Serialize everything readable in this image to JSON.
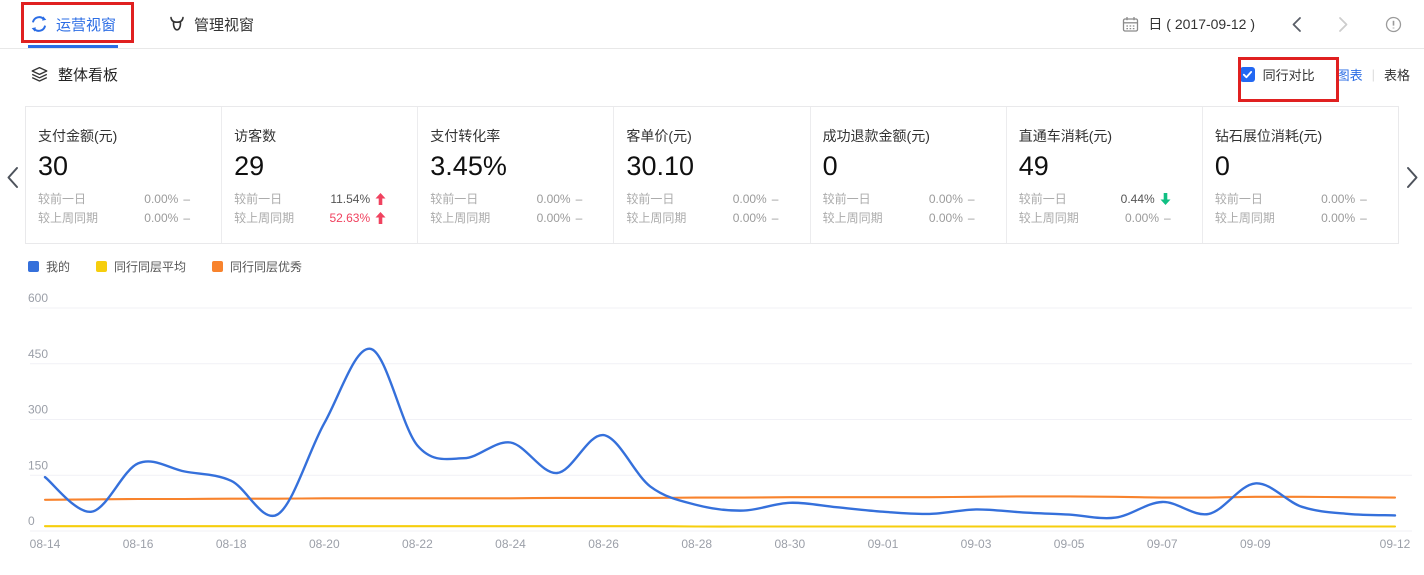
{
  "topbar": {
    "tabs": [
      {
        "label": "运营视窗",
        "active": true
      },
      {
        "label": "管理视窗",
        "active": false
      }
    ],
    "date_label": "日 ( 2017-09-12 )"
  },
  "section": {
    "title": "整体看板",
    "peer_compare_label": "同行对比",
    "peer_compare_checked": true,
    "view_chart": "图表",
    "view_separator": "|",
    "view_table": "表格"
  },
  "cards": [
    {
      "title": "支付金额(元)",
      "value": "30",
      "rows": [
        {
          "label": "较前一日",
          "value": "0.00%",
          "trend": "flat",
          "tone": "gray"
        },
        {
          "label": "较上周同期",
          "value": "0.00%",
          "trend": "flat",
          "tone": "gray"
        }
      ]
    },
    {
      "title": "访客数",
      "value": "29",
      "rows": [
        {
          "label": "较前一日",
          "value": "11.54%",
          "trend": "up",
          "tone": "dark"
        },
        {
          "label": "较上周同期",
          "value": "52.63%",
          "trend": "up",
          "tone": "red"
        }
      ]
    },
    {
      "title": "支付转化率",
      "value": "3.45%",
      "rows": [
        {
          "label": "较前一日",
          "value": "0.00%",
          "trend": "flat",
          "tone": "gray"
        },
        {
          "label": "较上周同期",
          "value": "0.00%",
          "trend": "flat",
          "tone": "gray"
        }
      ]
    },
    {
      "title": "客单价(元)",
      "value": "30.10",
      "rows": [
        {
          "label": "较前一日",
          "value": "0.00%",
          "trend": "flat",
          "tone": "gray"
        },
        {
          "label": "较上周同期",
          "value": "0.00%",
          "trend": "flat",
          "tone": "gray"
        }
      ]
    },
    {
      "title": "成功退款金额(元)",
      "value": "0",
      "rows": [
        {
          "label": "较前一日",
          "value": "0.00%",
          "trend": "flat",
          "tone": "gray"
        },
        {
          "label": "较上周同期",
          "value": "0.00%",
          "trend": "flat",
          "tone": "gray"
        }
      ]
    },
    {
      "title": "直通车消耗(元)",
      "value": "49",
      "rows": [
        {
          "label": "较前一日",
          "value": "0.44%",
          "trend": "down",
          "tone": "dark"
        },
        {
          "label": "较上周同期",
          "value": "0.00%",
          "trend": "flat",
          "tone": "gray"
        }
      ]
    },
    {
      "title": "钻石展位消耗(元)",
      "value": "0",
      "rows": [
        {
          "label": "较前一日",
          "value": "0.00%",
          "trend": "flat",
          "tone": "gray"
        },
        {
          "label": "较上周同期",
          "value": "0.00%",
          "trend": "flat",
          "tone": "gray"
        }
      ]
    }
  ],
  "chart_data": {
    "type": "line",
    "title": "",
    "xlabel": "",
    "ylabel": "",
    "x": [
      "08-14",
      "08-15",
      "08-16",
      "08-17",
      "08-18",
      "08-19",
      "08-20",
      "08-21",
      "08-22",
      "08-23",
      "08-24",
      "08-25",
      "08-26",
      "08-27",
      "08-28",
      "08-29",
      "08-30",
      "08-31",
      "09-01",
      "09-02",
      "09-03",
      "09-04",
      "09-05",
      "09-06",
      "09-07",
      "09-08",
      "09-09",
      "09-10",
      "09-11",
      "09-12"
    ],
    "x_tick_labels": [
      "08-14",
      "08-16",
      "08-18",
      "08-20",
      "08-22",
      "08-24",
      "08-26",
      "08-28",
      "08-30",
      "09-01",
      "09-03",
      "09-05",
      "09-07",
      "09-09",
      "09-12"
    ],
    "ylim": [
      0,
      600
    ],
    "yticks": [
      0,
      150,
      300,
      450,
      600
    ],
    "grid": true,
    "smooth": true,
    "legend_position": "top-left",
    "series": [
      {
        "name": "我的",
        "color": "#3570DB",
        "values": [
          145,
          52,
          182,
          160,
          135,
          45,
          290,
          490,
          230,
          196,
          238,
          156,
          258,
          120,
          70,
          55,
          76,
          64,
          52,
          46,
          58,
          50,
          44,
          36,
          78,
          46,
          128,
          65,
          46,
          42
        ]
      },
      {
        "name": "同行同层平均",
        "color": "#F6CE0D",
        "values": [
          13,
          13,
          13,
          13,
          13,
          13,
          13,
          13,
          13,
          13,
          13,
          13,
          13,
          13,
          12,
          12,
          12,
          12,
          12,
          12,
          12,
          12,
          12,
          12,
          12,
          12,
          12,
          12,
          12,
          12
        ]
      },
      {
        "name": "同行同层优秀",
        "color": "#F8832D",
        "values": [
          84,
          85,
          86,
          86,
          87,
          87,
          88,
          88,
          88,
          88,
          88,
          89,
          89,
          89,
          90,
          90,
          91,
          91,
          91,
          91,
          92,
          93,
          93,
          92,
          90,
          90,
          92,
          92,
          91,
          90
        ]
      }
    ]
  },
  "colors": {
    "accent_blue": "#2B6DE5",
    "checkbox_blue": "#2368F2",
    "annotation_red": "#E02020",
    "up_red": "#F0425F",
    "down_green": "#10BF83",
    "line_blue": "#3570DB",
    "line_yellow": "#F6CE0D",
    "line_orange": "#F8832D",
    "axis_gray": "#9B9FA8",
    "gridline": "#F1F1F6"
  },
  "icons": {
    "operations_tab": "refresh-circle",
    "management_tab": "bull-head",
    "date": "calendar",
    "date_prev": "chevron-left",
    "date_next": "chevron-right",
    "help": "info-circle",
    "board": "layers",
    "cards_prev": "chevron-left",
    "cards_next": "chevron-right"
  }
}
